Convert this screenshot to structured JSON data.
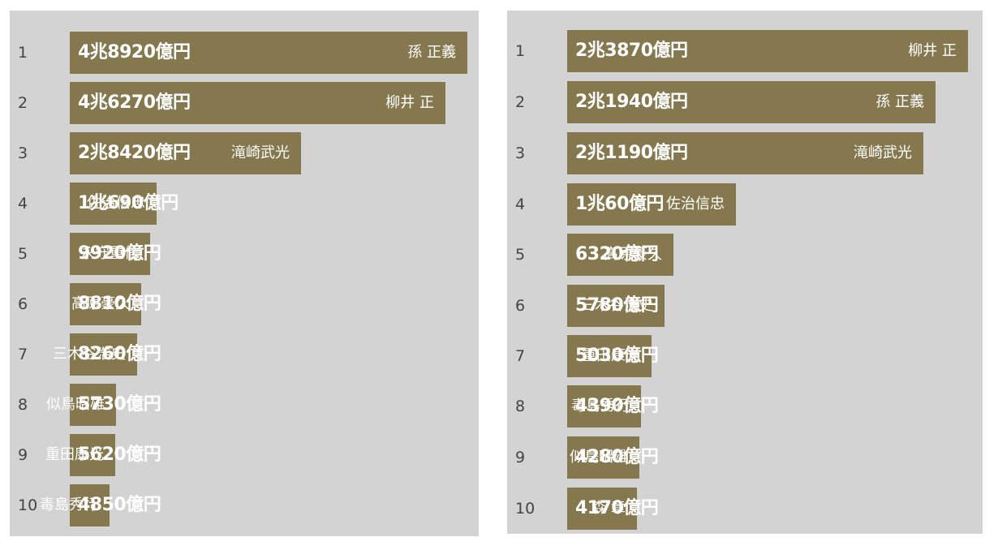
{
  "chart_data": [
    {
      "type": "bar",
      "orientation": "horizontal",
      "bar_color": "#85784f",
      "panel_color": "#d3d3d3",
      "scale_max": 48920,
      "ranks": [
        "1",
        "2",
        "3",
        "4",
        "5",
        "6",
        "7",
        "8",
        "9",
        "10"
      ],
      "values": [
        48920,
        46270,
        28420,
        10690,
        9920,
        8810,
        8260,
        5730,
        5620,
        4850
      ],
      "value_labels": [
        "4兆8920億円",
        "4兆6270億円",
        "2兆8420億円",
        "1兆690億円",
        "9920億円",
        "8810億円",
        "8260億円",
        "5730億円",
        "5620億円",
        "4850億円"
      ],
      "names": [
        "孫 正義",
        "柳井 正",
        "滝崎武光",
        "佐治信忠",
        "永守重信",
        "高原豪久",
        "三木谷浩史",
        "似鳥昭雄",
        "重田康光",
        "毒島秀行"
      ]
    },
    {
      "type": "bar",
      "orientation": "horizontal",
      "bar_color": "#85784f",
      "panel_color": "#d3d3d3",
      "scale_max": 23870,
      "ranks": [
        "1",
        "2",
        "3",
        "4",
        "5",
        "6",
        "7",
        "8",
        "9",
        "10"
      ],
      "values": [
        23870,
        21940,
        21190,
        10060,
        6320,
        5780,
        5030,
        4390,
        4280,
        4170
      ],
      "value_labels": [
        "2兆3870億円",
        "2兆1940億円",
        "2兆1190億円",
        "1兆60億円",
        "6320億円",
        "5780億円",
        "5030億円",
        "4390億円",
        "4280億円",
        "4170億円"
      ],
      "names": [
        "柳井 正",
        "孫 正義",
        "滝崎武光",
        "佐治信忠",
        "高原豪久",
        "三木谷浩史",
        "重田康光",
        "毒島秀行",
        "似鳥昭雄",
        "森 章"
      ]
    }
  ]
}
